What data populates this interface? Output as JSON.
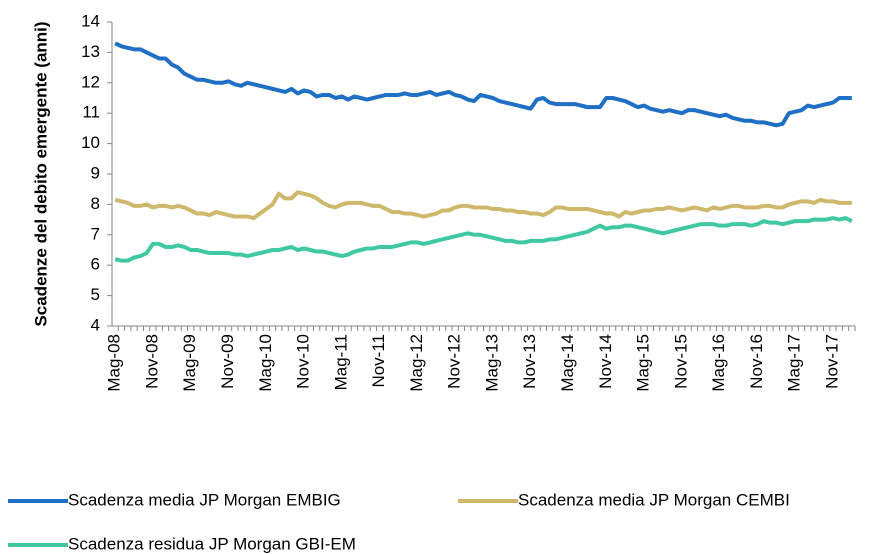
{
  "chart_data": {
    "type": "line",
    "ylabel": "Scadenze del debito emergente (anni)",
    "categories": [
      "Mag-08",
      null,
      null,
      null,
      null,
      null,
      "Nov-08",
      null,
      null,
      null,
      null,
      null,
      "Mag-09",
      null,
      null,
      null,
      null,
      null,
      "Nov-09",
      null,
      null,
      null,
      null,
      null,
      "Mag-10",
      null,
      null,
      null,
      null,
      null,
      "Nov-10",
      null,
      null,
      null,
      null,
      null,
      "Mag-11",
      null,
      null,
      null,
      null,
      null,
      "Nov-11",
      null,
      null,
      null,
      null,
      null,
      "Mag-12",
      null,
      null,
      null,
      null,
      null,
      "Nov-12",
      null,
      null,
      null,
      null,
      null,
      "Mag-13",
      null,
      null,
      null,
      null,
      null,
      "Nov-13",
      null,
      null,
      null,
      null,
      null,
      "Mag-14",
      null,
      null,
      null,
      null,
      null,
      "Nov-14",
      null,
      null,
      null,
      null,
      null,
      "Mag-15",
      null,
      null,
      null,
      null,
      null,
      "Nov-15",
      null,
      null,
      null,
      null,
      null,
      "Mag-16",
      null,
      null,
      null,
      null,
      null,
      "Nov-16",
      null,
      null,
      null,
      null,
      null,
      "Mag-17",
      null,
      null,
      null,
      null,
      null,
      "Nov-17",
      null,
      null,
      null
    ],
    "series": [
      {
        "name": "Scadenza media JP Morgan EMBIG",
        "color": "#1f6fc4",
        "values": [
          13.3,
          13.2,
          13.15,
          13.1,
          13.1,
          13.0,
          12.9,
          12.8,
          12.8,
          12.6,
          12.5,
          12.3,
          12.2,
          12.1,
          12.1,
          12.05,
          12.0,
          12.0,
          12.05,
          11.95,
          11.9,
          12.0,
          11.95,
          11.9,
          11.85,
          11.8,
          11.75,
          11.7,
          11.8,
          11.65,
          11.75,
          11.7,
          11.55,
          11.6,
          11.6,
          11.5,
          11.55,
          11.45,
          11.55,
          11.5,
          11.45,
          11.5,
          11.55,
          11.6,
          11.6,
          11.6,
          11.65,
          11.6,
          11.6,
          11.65,
          11.7,
          11.6,
          11.65,
          11.7,
          11.6,
          11.55,
          11.45,
          11.4,
          11.6,
          11.55,
          11.5,
          11.4,
          11.35,
          11.3,
          11.25,
          11.2,
          11.15,
          11.45,
          11.5,
          11.35,
          11.3,
          11.3,
          11.3,
          11.3,
          11.25,
          11.2,
          11.2,
          11.2,
          11.5,
          11.5,
          11.45,
          11.4,
          11.3,
          11.2,
          11.25,
          11.15,
          11.1,
          11.05,
          11.1,
          11.05,
          11.0,
          11.1,
          11.1,
          11.05,
          11.0,
          10.95,
          10.9,
          10.95,
          10.85,
          10.8,
          10.75,
          10.75,
          10.7,
          10.7,
          10.65,
          10.6,
          10.65,
          11.0,
          11.05,
          11.1,
          11.25,
          11.2,
          11.25,
          11.3,
          11.35,
          11.5,
          11.5,
          11.5
        ]
      },
      {
        "name": "Scadenza media JP Morgan CEMBI",
        "color": "#cdb86c",
        "values": [
          8.15,
          8.1,
          8.05,
          7.95,
          7.95,
          8.0,
          7.9,
          7.95,
          7.95,
          7.9,
          7.95,
          7.9,
          7.8,
          7.7,
          7.7,
          7.65,
          7.75,
          7.7,
          7.65,
          7.6,
          7.6,
          7.6,
          7.55,
          7.7,
          7.85,
          8.0,
          8.35,
          8.2,
          8.2,
          8.4,
          8.35,
          8.3,
          8.2,
          8.05,
          7.95,
          7.9,
          8.0,
          8.05,
          8.05,
          8.05,
          8.0,
          7.95,
          7.95,
          7.85,
          7.75,
          7.75,
          7.7,
          7.7,
          7.65,
          7.6,
          7.65,
          7.7,
          7.8,
          7.8,
          7.9,
          7.95,
          7.95,
          7.9,
          7.9,
          7.9,
          7.85,
          7.85,
          7.8,
          7.8,
          7.75,
          7.75,
          7.7,
          7.7,
          7.65,
          7.75,
          7.9,
          7.9,
          7.85,
          7.85,
          7.85,
          7.85,
          7.8,
          7.75,
          7.7,
          7.7,
          7.6,
          7.75,
          7.7,
          7.75,
          7.8,
          7.8,
          7.85,
          7.85,
          7.9,
          7.85,
          7.8,
          7.85,
          7.9,
          7.85,
          7.8,
          7.9,
          7.85,
          7.9,
          7.95,
          7.95,
          7.9,
          7.9,
          7.9,
          7.95,
          7.95,
          7.9,
          7.9,
          8.0,
          8.05,
          8.1,
          8.1,
          8.05,
          8.15,
          8.1,
          8.1,
          8.05,
          8.05,
          8.05
        ]
      },
      {
        "name": "Scadenza residua JP Morgan GBI-EM",
        "color": "#40c8a2",
        "values": [
          6.2,
          6.15,
          6.15,
          6.25,
          6.3,
          6.4,
          6.7,
          6.7,
          6.6,
          6.6,
          6.65,
          6.6,
          6.5,
          6.5,
          6.45,
          6.4,
          6.4,
          6.4,
          6.4,
          6.35,
          6.35,
          6.3,
          6.35,
          6.4,
          6.45,
          6.5,
          6.5,
          6.55,
          6.6,
          6.5,
          6.55,
          6.5,
          6.45,
          6.45,
          6.4,
          6.35,
          6.3,
          6.35,
          6.45,
          6.5,
          6.55,
          6.55,
          6.6,
          6.6,
          6.6,
          6.65,
          6.7,
          6.75,
          6.75,
          6.7,
          6.75,
          6.8,
          6.85,
          6.9,
          6.95,
          7.0,
          7.05,
          7.0,
          7.0,
          6.95,
          6.9,
          6.85,
          6.8,
          6.8,
          6.75,
          6.75,
          6.8,
          6.8,
          6.8,
          6.85,
          6.85,
          6.9,
          6.95,
          7.0,
          7.05,
          7.1,
          7.2,
          7.3,
          7.2,
          7.25,
          7.25,
          7.3,
          7.3,
          7.25,
          7.2,
          7.15,
          7.1,
          7.05,
          7.1,
          7.15,
          7.2,
          7.25,
          7.3,
          7.35,
          7.35,
          7.35,
          7.3,
          7.3,
          7.35,
          7.35,
          7.35,
          7.3,
          7.35,
          7.45,
          7.4,
          7.4,
          7.35,
          7.4,
          7.45,
          7.45,
          7.45,
          7.5,
          7.5,
          7.5,
          7.55,
          7.5,
          7.55,
          7.45
        ]
      }
    ],
    "ylim": [
      4,
      14
    ],
    "yticks": [
      4,
      5,
      6,
      7,
      8,
      9,
      10,
      11,
      12,
      13,
      14
    ],
    "grid": false,
    "legend": "bottom"
  }
}
